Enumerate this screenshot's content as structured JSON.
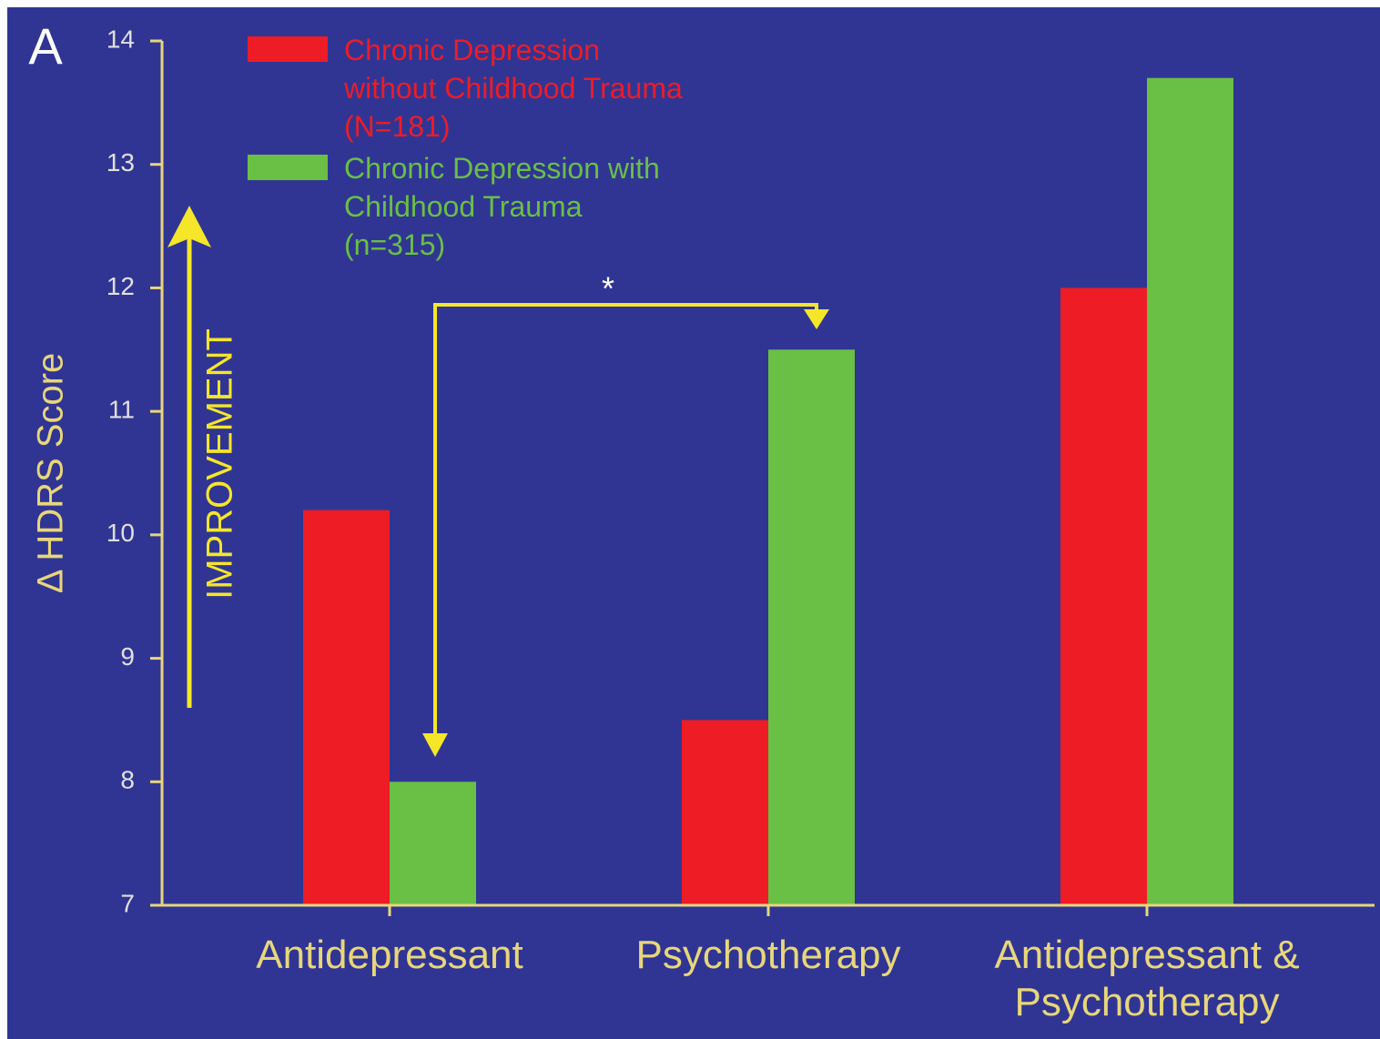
{
  "chart_data": {
    "type": "bar",
    "panel_label": "A",
    "y_label": "Δ HDRS Score",
    "annotations": [
      "IMPROVEMENT",
      "*"
    ],
    "categories": [
      "Antidepressant",
      "Psychotherapy",
      "Antidepressant &\nPsychotherapy"
    ],
    "series": [
      {
        "name": "Chronic Depression\nwithout Childhood Trauma\n(N=181)",
        "color": "#ee1c25",
        "values": [
          10.2,
          8.5,
          12.0
        ]
      },
      {
        "name": "Chronic Depression with\nChildhood Trauma\n(n=315)",
        "color": "#6abf45",
        "values": [
          8.0,
          11.5,
          13.7
        ]
      }
    ],
    "ylim": [
      7,
      14
    ],
    "yticks": [
      7,
      8,
      9,
      10,
      11,
      12,
      13,
      14
    ]
  }
}
